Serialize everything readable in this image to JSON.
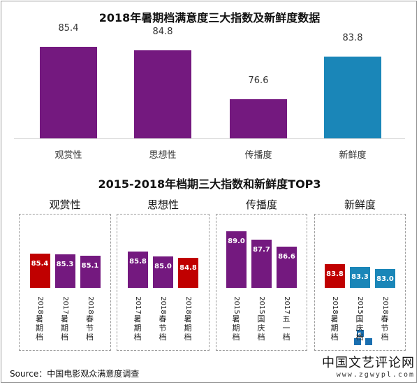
{
  "chart_data": [
    {
      "type": "bar",
      "title": "2018年暑期档满意度三大指数及新鲜度数据",
      "categories": [
        "观赏性",
        "思想性",
        "传播度",
        "新鲜度"
      ],
      "values": [
        85.4,
        84.8,
        76.6,
        83.8
      ],
      "colors": [
        "#74197f",
        "#74197f",
        "#74197f",
        "#1a86b8"
      ],
      "ylim": [
        70,
        90
      ]
    },
    {
      "type": "bar",
      "title": "2015-2018年档期三大指数和新鲜度TOP3",
      "groups": [
        {
          "name": "观赏性",
          "categories": [
            "2018暑期档",
            "2017暑期档",
            "2018春节档"
          ],
          "values": [
            85.4,
            85.3,
            85.1
          ],
          "colors": [
            "#c00000",
            "#74197f",
            "#74197f"
          ]
        },
        {
          "name": "思想性",
          "categories": [
            "2017暑期档",
            "2018春节档",
            "2018暑期档"
          ],
          "values": [
            85.8,
            85.0,
            84.8
          ],
          "colors": [
            "#74197f",
            "#74197f",
            "#c00000"
          ]
        },
        {
          "name": "传播度",
          "categories": [
            "2015暑期档",
            "2015国庆档",
            "2017五一档"
          ],
          "values": [
            89.0,
            87.7,
            86.6
          ],
          "colors": [
            "#74197f",
            "#74197f",
            "#74197f"
          ]
        },
        {
          "name": "新鲜度",
          "categories": [
            "2018暑期档",
            "2015国庆档",
            "2018春节档"
          ],
          "values": [
            83.8,
            83.3,
            83.0
          ],
          "colors": [
            "#c00000",
            "#1a86b8",
            "#1a86b8"
          ]
        }
      ],
      "ylim": [
        80,
        90
      ]
    }
  ],
  "source": "Source：中国电影观众满意度调查",
  "watermark": {
    "text": "中国文艺评论网",
    "url": "www.zgwypl.com"
  }
}
